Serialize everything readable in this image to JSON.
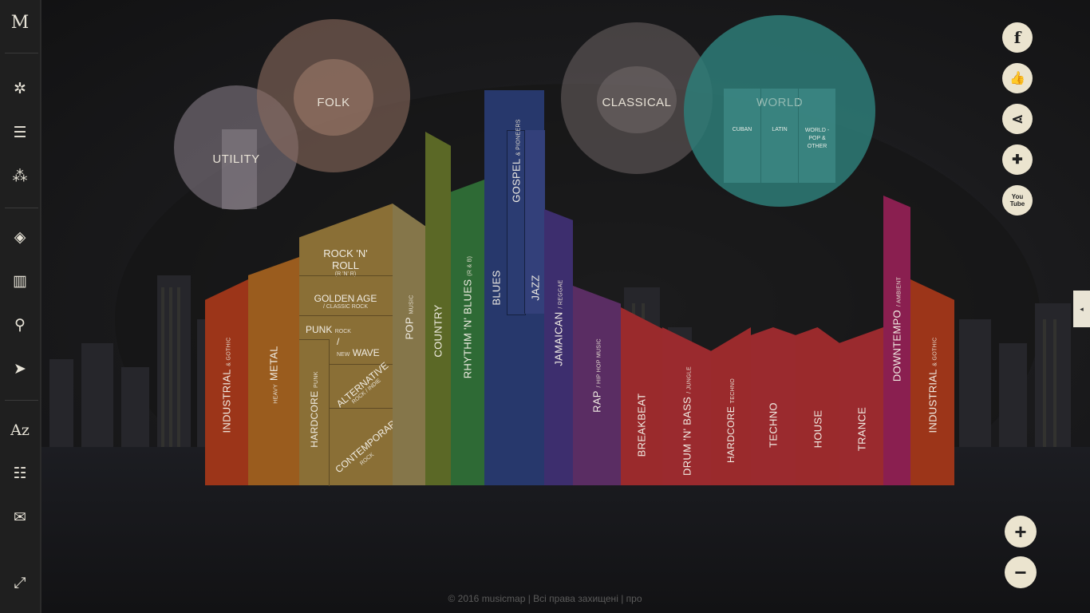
{
  "sidebar": {
    "logo": "M",
    "items": [
      {
        "name": "compass-icon",
        "glyph": "✲"
      },
      {
        "name": "list-icon",
        "glyph": "☰"
      },
      {
        "name": "network-icon",
        "glyph": "⁂"
      },
      {
        "name": "layers-icon",
        "glyph": "◈"
      },
      {
        "name": "bar-chart-icon",
        "glyph": "▥"
      },
      {
        "name": "search-icon",
        "glyph": "⚲"
      },
      {
        "name": "play-route-icon",
        "glyph": "➤"
      },
      {
        "name": "alphabet-icon",
        "glyph": "Az"
      },
      {
        "name": "index-icon",
        "glyph": "☷"
      },
      {
        "name": "mail-icon",
        "glyph": "✉"
      },
      {
        "name": "fullscreen-icon",
        "glyph": "⤢"
      }
    ]
  },
  "circles": {
    "folk": "FOLK",
    "utility": "UTILITY",
    "classical": "CLASSICAL",
    "world": "WORLD",
    "world_sub": [
      "CUBAN",
      "LATIN",
      "WORLD - POP & OTHER"
    ]
  },
  "genres": {
    "industrial_left": {
      "main": "INDUSTRIAL",
      "sub": "& GOTHIC"
    },
    "metal": {
      "main": "METAL",
      "sub": "HEAVY"
    },
    "rocknroll": {
      "main": "ROCK 'N' ROLL",
      "sub": "(R 'N' R)"
    },
    "golden_age": {
      "main": "GOLDEN AGE",
      "sub": "/ CLASSIC ROCK"
    },
    "punk": {
      "main": "PUNK",
      "sub": "ROCK"
    },
    "new_wave": {
      "slash": "/",
      "pre": "NEW",
      "main": "WAVE"
    },
    "hardcore_punk": {
      "main": "HARDCORE",
      "sub": "PUNK"
    },
    "alternative": {
      "main": "ALTERNATIVE",
      "sub": "ROCK / INDIE"
    },
    "contemporary": {
      "main": "CONTEMPORARY",
      "sub": "ROCK"
    },
    "pop": {
      "main": "POP",
      "sub": "MUSIC"
    },
    "country": {
      "main": "COUNTRY"
    },
    "rnb": {
      "main": "RHYTHM 'N' BLUES",
      "sub": "(R & B)"
    },
    "blues": {
      "main": "BLUES"
    },
    "gospel": {
      "main": "GOSPEL",
      "sub": "& PIONEERS"
    },
    "jazz": {
      "main": "JAZZ"
    },
    "jamaican": {
      "main": "JAMAICAN",
      "sub": "/ REGGAE"
    },
    "rap": {
      "main": "RAP",
      "sub": "/ HIP HOP MUSIC"
    },
    "breakbeat": {
      "main": "BREAKBEAT"
    },
    "dnb": {
      "main": "DRUM 'N' BASS",
      "sub": "/ JUNGLE"
    },
    "hardcore_techno": {
      "main": "HARDCORE",
      "sub": "TECHNO"
    },
    "techno": {
      "main": "TECHNO"
    },
    "house": {
      "main": "HOUSE"
    },
    "trance": {
      "main": "TRANCE"
    },
    "downtempo": {
      "main": "DOWNTEMPO",
      "sub": "/ AMBIENT"
    },
    "industrial_right": {
      "main": "INDUSTRIAL",
      "sub": "& GOTHIC"
    }
  },
  "social": {
    "facebook": "f",
    "like": "👍",
    "share": "⋖",
    "follow": "✚",
    "youtube": "You Tube"
  },
  "zoom": {
    "in": "+",
    "out": "−"
  },
  "side_tab": "◂",
  "footer": {
    "copyright": "© 2016 musicmap",
    "rights": "Всі права захищені",
    "about": "про",
    "sep": " | "
  },
  "colors": {
    "folk": "#8a6a5e",
    "utility": "#8e848e",
    "classical": "#6a6262",
    "world": "#2e7c78",
    "rock": "#8c7238",
    "metal": "#9a5a1e",
    "industrial": "#a33a1a",
    "pop": "#8b7a44",
    "country": "#5c6a28",
    "rnb": "#2f6a35",
    "blues": "#28386e",
    "jazz": "#34407a",
    "jamaican": "#3e2e70",
    "rap": "#5a2e66",
    "electronic": "#9a2a2e",
    "downtempo": "#8a1f52"
  }
}
